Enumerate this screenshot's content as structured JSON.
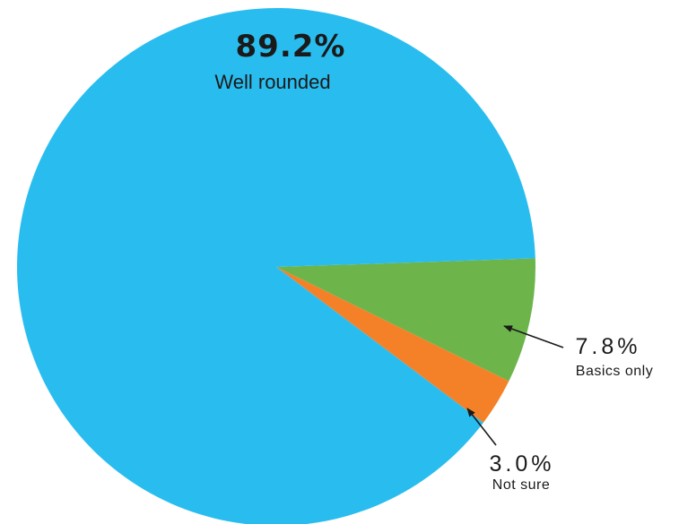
{
  "chart_data": {
    "type": "pie",
    "slices": [
      {
        "label": "Well rounded",
        "value": 89.2,
        "value_label": "89.2%",
        "color": "#29BDEF"
      },
      {
        "label": "Basics only",
        "value": 7.8,
        "value_label": "7.8%",
        "color": "#6DB54B"
      },
      {
        "label": "Not sure",
        "value": 3.0,
        "value_label": "3.0%",
        "color": "#F48128"
      }
    ]
  }
}
